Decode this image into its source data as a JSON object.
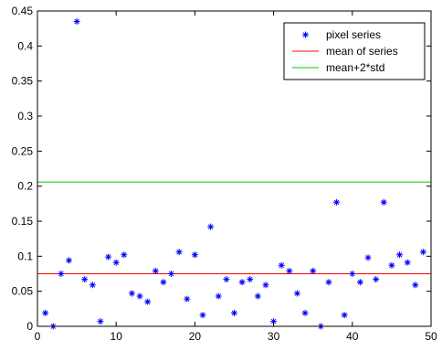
{
  "chart_data": {
    "type": "scatter",
    "title": "",
    "xlabel": "",
    "ylabel": "",
    "xlim": [
      0,
      50
    ],
    "ylim": [
      0,
      0.45
    ],
    "xticks": [
      "0",
      "10",
      "20",
      "30",
      "40",
      "50"
    ],
    "yticks": [
      "0",
      "0.05",
      "0.1",
      "0.15",
      "0.2",
      "0.25",
      "0.3",
      "0.35",
      "0.4",
      "0.45"
    ],
    "grid": false,
    "legend_position": "top-right",
    "series": [
      {
        "name": "pixel series",
        "marker": "asterisk",
        "color": "#0000ff",
        "x": [
          1,
          2,
          3,
          4,
          5,
          6,
          7,
          8,
          9,
          10,
          11,
          12,
          13,
          14,
          15,
          16,
          17,
          18,
          19,
          20,
          21,
          22,
          23,
          24,
          25,
          26,
          27,
          28,
          29,
          30,
          31,
          32,
          33,
          34,
          35,
          36,
          37,
          38,
          39,
          40,
          41,
          42,
          43,
          44,
          45,
          46,
          47,
          48,
          49
        ],
        "y": [
          0.019,
          0.0,
          0.075,
          0.094,
          0.435,
          0.067,
          0.059,
          0.007,
          0.099,
          0.091,
          0.102,
          0.047,
          0.043,
          0.035,
          0.079,
          0.063,
          0.075,
          0.106,
          0.039,
          0.102,
          0.016,
          0.142,
          0.043,
          0.067,
          0.019,
          0.063,
          0.067,
          0.043,
          0.059,
          0.007,
          0.087,
          0.079,
          0.047,
          0.019,
          0.079,
          0.0,
          0.063,
          0.177,
          0.016,
          0.075,
          0.063,
          0.098,
          0.067,
          0.177,
          0.087,
          0.102,
          0.091,
          0.059,
          0.106
        ]
      },
      {
        "name": "mean of series",
        "type": "hline",
        "color": "#ff0000",
        "y": 0.075
      },
      {
        "name": "mean+2*std",
        "type": "hline",
        "color": "#00cc00",
        "y": 0.206
      }
    ]
  }
}
